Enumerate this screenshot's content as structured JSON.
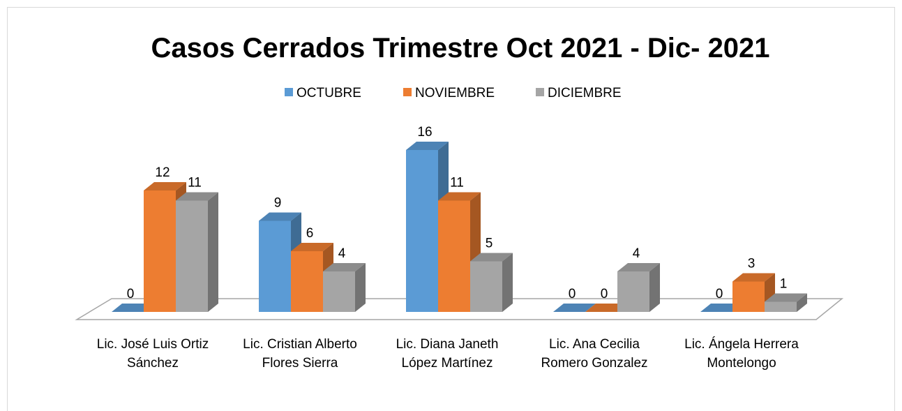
{
  "chart_data": {
    "type": "bar3d",
    "title": "Casos Cerrados Trimestre Oct 2021 - Dic- 2021",
    "categories": [
      "Lic. José Luis Ortiz Sánchez",
      "Lic. Cristian Alberto Flores Sierra",
      "Lic. Diana Janeth López Martínez",
      "Lic. Ana Cecilia Romero Gonzalez",
      "Lic. Ángela Herrera Montelongo"
    ],
    "series": [
      {
        "name": "OCTUBRE",
        "color": "#5b9bd5",
        "values": [
          0,
          9,
          16,
          0,
          0
        ]
      },
      {
        "name": "NOVIEMBRE",
        "color": "#ed7d31",
        "values": [
          12,
          6,
          11,
          0,
          3
        ]
      },
      {
        "name": "DICIEMBRE",
        "color": "#a5a5a5",
        "values": [
          11,
          4,
          5,
          4,
          1
        ]
      }
    ],
    "legend": "top"
  }
}
